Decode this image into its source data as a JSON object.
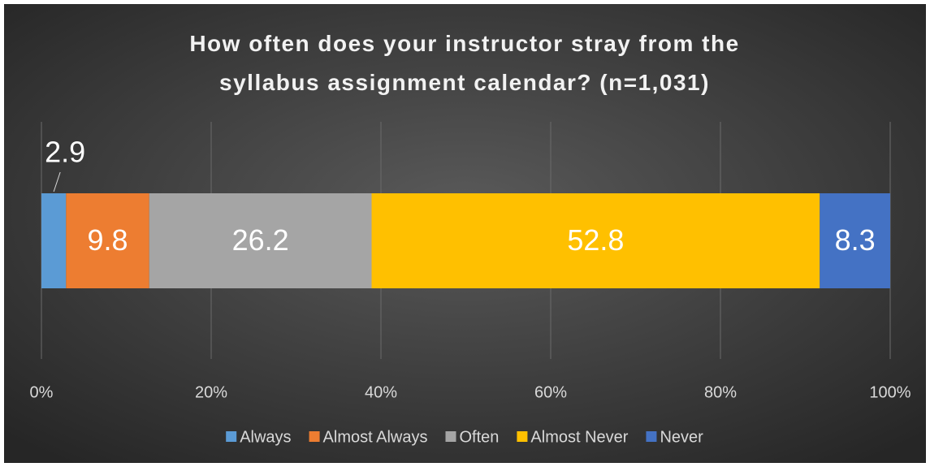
{
  "chart_data": {
    "type": "stacked_bar_horizontal",
    "title": "How often does your instructor stray from the syllabus assignment calendar? (n=1,031)",
    "series": [
      {
        "name": "Always",
        "color": "#5b9bd5",
        "values": [
          2.9
        ]
      },
      {
        "name": "Almost Always",
        "color": "#ed7d31",
        "values": [
          9.8
        ]
      },
      {
        "name": "Often",
        "color": "#a5a5a5",
        "values": [
          26.2
        ]
      },
      {
        "name": "Almost Never",
        "color": "#ffc000",
        "values": [
          52.8
        ]
      },
      {
        "name": "Never",
        "color": "#4472c4",
        "values": [
          8.3
        ]
      }
    ],
    "xlim": [
      0,
      100
    ],
    "xticks": [
      {
        "value": 0,
        "label": "0%"
      },
      {
        "value": 20,
        "label": "20%"
      },
      {
        "value": 40,
        "label": "40%"
      },
      {
        "value": 60,
        "label": "60%"
      },
      {
        "value": 80,
        "label": "80%"
      },
      {
        "value": 100,
        "label": "100%"
      }
    ],
    "grid": true,
    "legend": "bottom"
  }
}
